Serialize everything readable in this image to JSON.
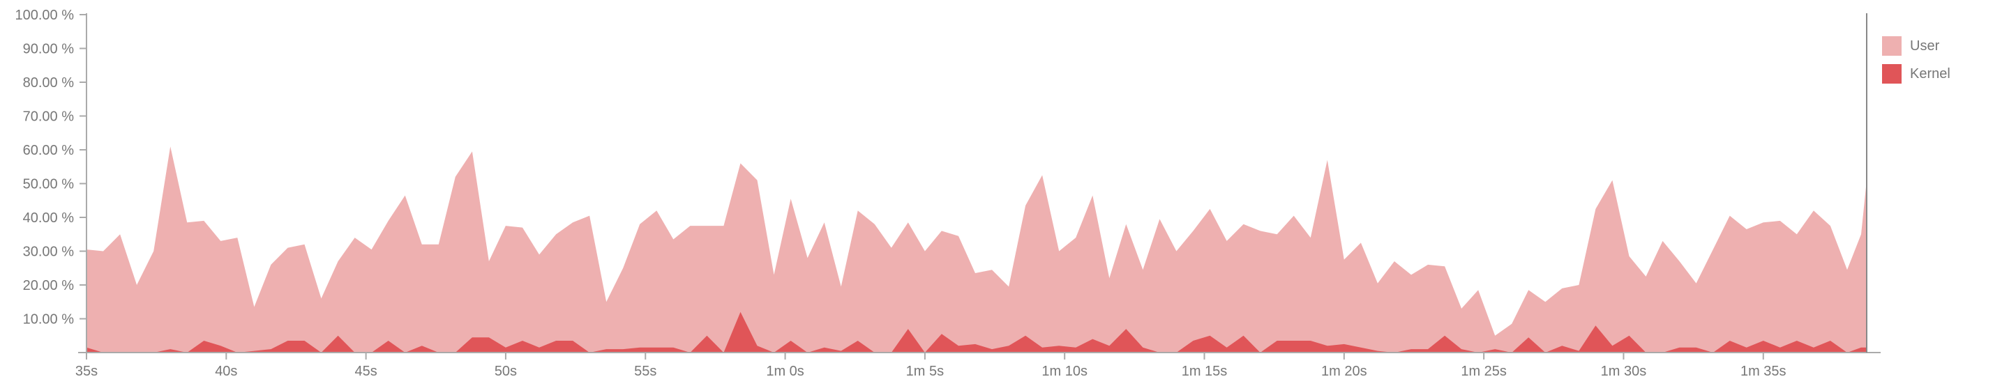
{
  "chart_data": {
    "type": "area",
    "stacked": false,
    "ylim": [
      0,
      100
    ],
    "y_ticks": [
      "10.00 %",
      "20.00 %",
      "30.00 %",
      "40.00 %",
      "50.00 %",
      "60.00 %",
      "70.00 %",
      "80.00 %",
      "90.00 %",
      "100.00 %"
    ],
    "y_tick_values": [
      10,
      20,
      30,
      40,
      50,
      60,
      70,
      80,
      90,
      100
    ],
    "x_unit": "seconds",
    "xlim": [
      35,
      98.7
    ],
    "x_ticks": [
      "35s",
      "40s",
      "45s",
      "50s",
      "55s",
      "1m 0s",
      "1m 5s",
      "1m 10s",
      "1m 15s",
      "1m 20s",
      "1m 25s",
      "1m 30s",
      "1m 35s"
    ],
    "x_tick_values": [
      35,
      40,
      45,
      50,
      55,
      60,
      65,
      70,
      75,
      80,
      85,
      90,
      95
    ],
    "grid": false,
    "legend_position": "top-right",
    "colors": {
      "User": "#eeb0b0",
      "Kernel": "#e05558",
      "axis": "#aaaaaa"
    },
    "series": [
      {
        "name": "User",
        "points": [
          [
            35.0,
            30.5
          ],
          [
            35.6,
            30.0
          ],
          [
            36.2,
            35.0
          ],
          [
            36.8,
            20.0
          ],
          [
            37.4,
            30.0
          ],
          [
            38.0,
            61.0
          ],
          [
            38.6,
            38.5
          ],
          [
            39.2,
            39.0
          ],
          [
            39.8,
            33.0
          ],
          [
            40.4,
            34.0
          ],
          [
            41.0,
            13.5
          ],
          [
            41.6,
            26.0
          ],
          [
            42.2,
            31.0
          ],
          [
            42.8,
            32.0
          ],
          [
            43.4,
            16.0
          ],
          [
            44.0,
            27.0
          ],
          [
            44.6,
            34.0
          ],
          [
            45.2,
            30.5
          ],
          [
            45.8,
            39.0
          ],
          [
            46.4,
            46.5
          ],
          [
            47.0,
            32.0
          ],
          [
            47.6,
            32.0
          ],
          [
            48.2,
            52.0
          ],
          [
            48.8,
            59.5
          ],
          [
            49.4,
            27.0
          ],
          [
            50.0,
            37.5
          ],
          [
            50.6,
            37.0
          ],
          [
            51.2,
            29.0
          ],
          [
            51.8,
            35.0
          ],
          [
            52.4,
            38.5
          ],
          [
            53.0,
            40.5
          ],
          [
            53.6,
            15.0
          ],
          [
            54.2,
            25.0
          ],
          [
            54.8,
            38.0
          ],
          [
            55.4,
            42.0
          ],
          [
            56.0,
            33.5
          ],
          [
            56.6,
            37.5
          ],
          [
            57.2,
            37.5
          ],
          [
            57.8,
            37.5
          ],
          [
            58.4,
            56.0
          ],
          [
            59.0,
            51.0
          ],
          [
            59.6,
            23.0
          ],
          [
            60.2,
            45.5
          ],
          [
            60.8,
            28.0
          ],
          [
            61.4,
            38.5
          ],
          [
            62.0,
            19.5
          ],
          [
            62.6,
            42.0
          ],
          [
            63.2,
            38.0
          ],
          [
            63.8,
            31.0
          ],
          [
            64.4,
            38.5
          ],
          [
            65.0,
            30.0
          ],
          [
            65.6,
            36.0
          ],
          [
            66.2,
            34.5
          ],
          [
            66.8,
            23.5
          ],
          [
            67.4,
            24.5
          ],
          [
            68.0,
            19.5
          ],
          [
            68.6,
            43.5
          ],
          [
            69.2,
            52.5
          ],
          [
            69.8,
            30.0
          ],
          [
            70.4,
            34.0
          ],
          [
            71.0,
            46.5
          ],
          [
            71.6,
            22.0
          ],
          [
            72.2,
            38.0
          ],
          [
            72.8,
            24.5
          ],
          [
            73.4,
            39.5
          ],
          [
            74.0,
            30.0
          ],
          [
            74.6,
            36.0
          ],
          [
            75.2,
            42.5
          ],
          [
            75.8,
            33.0
          ],
          [
            76.4,
            38.0
          ],
          [
            77.0,
            36.0
          ],
          [
            77.6,
            35.0
          ],
          [
            78.2,
            40.5
          ],
          [
            78.8,
            34.0
          ],
          [
            79.4,
            57.0
          ],
          [
            80.0,
            27.5
          ],
          [
            80.6,
            32.5
          ],
          [
            81.2,
            20.5
          ],
          [
            81.8,
            27.0
          ],
          [
            82.4,
            23.0
          ],
          [
            83.0,
            26.0
          ],
          [
            83.6,
            25.5
          ],
          [
            84.2,
            13.0
          ],
          [
            84.8,
            18.5
          ],
          [
            85.4,
            5.0
          ],
          [
            86.0,
            8.5
          ],
          [
            86.6,
            18.5
          ],
          [
            87.2,
            15.0
          ],
          [
            87.8,
            19.0
          ],
          [
            88.4,
            20.0
          ],
          [
            89.0,
            42.5
          ],
          [
            89.6,
            51.0
          ],
          [
            90.2,
            28.5
          ],
          [
            90.8,
            22.5
          ],
          [
            91.4,
            33.0
          ],
          [
            92.0,
            27.0
          ],
          [
            92.6,
            20.5
          ],
          [
            93.2,
            30.5
          ],
          [
            93.8,
            40.5
          ],
          [
            94.4,
            36.5
          ],
          [
            95.0,
            38.5
          ],
          [
            95.6,
            39.0
          ],
          [
            96.2,
            35.0
          ],
          [
            96.8,
            42.0
          ],
          [
            97.4,
            37.5
          ],
          [
            98.0,
            24.5
          ],
          [
            98.5,
            35.0
          ],
          [
            98.7,
            51.0
          ]
        ]
      },
      {
        "name": "Kernel",
        "points": [
          [
            35.0,
            1.5
          ],
          [
            35.6,
            0.0
          ],
          [
            36.2,
            0.0
          ],
          [
            36.8,
            0.0
          ],
          [
            37.4,
            0.0
          ],
          [
            38.0,
            1.0
          ],
          [
            38.6,
            0.0
          ],
          [
            39.2,
            3.5
          ],
          [
            39.8,
            2.0
          ],
          [
            40.4,
            0.0
          ],
          [
            41.0,
            0.5
          ],
          [
            41.6,
            1.0
          ],
          [
            42.2,
            3.5
          ],
          [
            42.8,
            3.5
          ],
          [
            43.4,
            0.0
          ],
          [
            44.0,
            5.0
          ],
          [
            44.6,
            0.0
          ],
          [
            45.2,
            0.0
          ],
          [
            45.8,
            3.5
          ],
          [
            46.4,
            0.0
          ],
          [
            47.0,
            2.0
          ],
          [
            47.6,
            0.0
          ],
          [
            48.2,
            0.0
          ],
          [
            48.8,
            4.5
          ],
          [
            49.4,
            4.5
          ],
          [
            50.0,
            1.5
          ],
          [
            50.6,
            3.5
          ],
          [
            51.2,
            1.5
          ],
          [
            51.8,
            3.5
          ],
          [
            52.4,
            3.5
          ],
          [
            53.0,
            0.0
          ],
          [
            53.6,
            1.0
          ],
          [
            54.2,
            1.0
          ],
          [
            54.8,
            1.5
          ],
          [
            55.4,
            1.5
          ],
          [
            56.0,
            1.5
          ],
          [
            56.6,
            0.0
          ],
          [
            57.2,
            5.0
          ],
          [
            57.8,
            0.0
          ],
          [
            58.4,
            12.0
          ],
          [
            59.0,
            2.0
          ],
          [
            59.6,
            0.0
          ],
          [
            60.2,
            3.5
          ],
          [
            60.8,
            0.0
          ],
          [
            61.4,
            1.5
          ],
          [
            62.0,
            0.5
          ],
          [
            62.6,
            3.5
          ],
          [
            63.2,
            0.0
          ],
          [
            63.8,
            0.0
          ],
          [
            64.4,
            7.0
          ],
          [
            65.0,
            0.0
          ],
          [
            65.6,
            5.5
          ],
          [
            66.2,
            2.0
          ],
          [
            66.8,
            2.5
          ],
          [
            67.4,
            1.0
          ],
          [
            68.0,
            2.0
          ],
          [
            68.6,
            5.0
          ],
          [
            69.2,
            1.5
          ],
          [
            69.8,
            2.0
          ],
          [
            70.4,
            1.5
          ],
          [
            71.0,
            4.0
          ],
          [
            71.6,
            2.0
          ],
          [
            72.2,
            7.0
          ],
          [
            72.8,
            1.5
          ],
          [
            73.4,
            0.0
          ],
          [
            74.0,
            0.0
          ],
          [
            74.6,
            3.5
          ],
          [
            75.2,
            5.0
          ],
          [
            75.8,
            1.5
          ],
          [
            76.4,
            5.0
          ],
          [
            77.0,
            0.0
          ],
          [
            77.6,
            3.5
          ],
          [
            78.2,
            3.5
          ],
          [
            78.8,
            3.5
          ],
          [
            79.4,
            2.0
          ],
          [
            80.0,
            2.5
          ],
          [
            80.6,
            1.5
          ],
          [
            81.2,
            0.5
          ],
          [
            81.8,
            0.0
          ],
          [
            82.4,
            1.0
          ],
          [
            83.0,
            1.0
          ],
          [
            83.6,
            5.0
          ],
          [
            84.2,
            1.0
          ],
          [
            84.8,
            0.0
          ],
          [
            85.4,
            1.0
          ],
          [
            86.0,
            0.0
          ],
          [
            86.6,
            4.5
          ],
          [
            87.2,
            0.0
          ],
          [
            87.8,
            2.0
          ],
          [
            88.4,
            0.5
          ],
          [
            89.0,
            8.0
          ],
          [
            89.6,
            2.0
          ],
          [
            90.2,
            5.0
          ],
          [
            90.8,
            0.0
          ],
          [
            91.4,
            0.0
          ],
          [
            92.0,
            1.5
          ],
          [
            92.6,
            1.5
          ],
          [
            93.2,
            0.0
          ],
          [
            93.8,
            3.5
          ],
          [
            94.4,
            1.5
          ],
          [
            95.0,
            3.5
          ],
          [
            95.6,
            1.5
          ],
          [
            96.2,
            3.5
          ],
          [
            96.8,
            1.5
          ],
          [
            97.4,
            3.5
          ],
          [
            98.0,
            0.0
          ],
          [
            98.5,
            1.5
          ],
          [
            98.7,
            1.5
          ]
        ]
      }
    ]
  }
}
